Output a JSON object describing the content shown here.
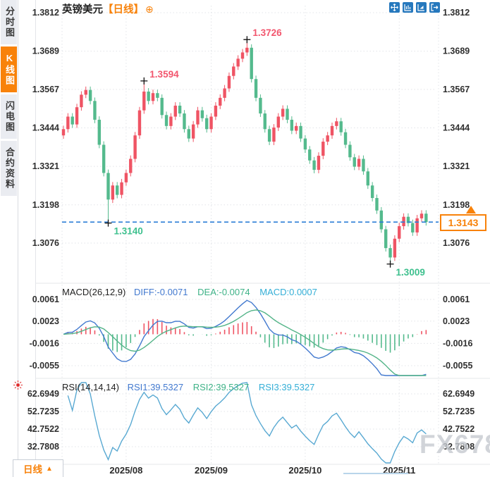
{
  "sidebar": {
    "tabs": [
      {
        "label": "分时图",
        "active": false
      },
      {
        "label": "K线图",
        "active": true
      },
      {
        "label": "闪电图",
        "active": false
      },
      {
        "label": "合约资料",
        "active": false
      }
    ]
  },
  "header": {
    "symbol": "英镑美元",
    "period_tag": "【日线】",
    "add_icon": "⊕",
    "toolbar_icons": [
      "pan-crosshair-icon",
      "axis-range-icon",
      "chart-scroll-icon",
      "exit-fullscreen-icon"
    ]
  },
  "indicators": {
    "macd": {
      "label": "MACD(26,12,9)",
      "diff_label": "DIFF:-0.0071",
      "dea_label": "DEA:-0.0074",
      "macd_label": "MACD:0.0007"
    },
    "rsi": {
      "label": "RSI(14,14,14)",
      "rsi1_label": "RSI1:39.5327",
      "rsi2_label": "RSI2:39.5327",
      "rsi3_label": "RSI3:39.5327"
    }
  },
  "footer": {
    "period_label": "日线",
    "arrow": "▲"
  },
  "price_tag": {
    "value": "1.3143"
  },
  "watermark": "FX678",
  "colors": {
    "accent_orange": "#f8820a",
    "candle_up_red": "#ef5464",
    "candle_down_green": "#54ba8d",
    "diff_blue": "#4279cf",
    "dea_green": "#53b488",
    "macd_cyan": "#33aed6",
    "rsi_blue": "#59a9d2",
    "dashed_price_blue": "#2f7fd6",
    "annotation_red": "#f2566e",
    "annotation_green": "#3ec08e",
    "grid_gray": "#e2e4e8",
    "axis_text": "#2f2f2f"
  },
  "chart_data": {
    "type": "candlestick+macd+rsi",
    "title": "英镑美元 日线 (GBP/USD Daily)",
    "legend_position": "top-left-per-panel",
    "grid": true,
    "price_ticks": [
      "1.3812",
      "1.3689",
      "1.3567",
      "1.3444",
      "1.3321",
      "1.3198",
      "1.3076"
    ],
    "price_axis_range": [
      1.295,
      1.3836
    ],
    "open_first": 1.342,
    "default_wick": 0.0011,
    "closes": [
      1.344,
      1.348,
      1.3455,
      1.351,
      1.355,
      1.3565,
      1.353,
      1.347,
      1.339,
      1.33,
      1.3215,
      1.326,
      1.323,
      1.327,
      1.33,
      1.3345,
      1.342,
      1.35,
      1.356,
      1.353,
      1.3555,
      1.354,
      1.3485,
      1.345,
      1.348,
      1.3515,
      1.349,
      1.344,
      1.341,
      1.3455,
      1.35,
      1.3475,
      1.344,
      1.348,
      1.3515,
      1.354,
      1.357,
      1.361,
      1.364,
      1.3665,
      1.3685,
      1.37,
      1.36,
      1.354,
      1.349,
      1.344,
      1.34,
      1.3445,
      1.348,
      1.3505,
      1.347,
      1.3435,
      1.345,
      1.341,
      1.3375,
      1.334,
      1.331,
      1.3355,
      1.34,
      1.342,
      1.345,
      1.3465,
      1.343,
      1.339,
      1.335,
      1.332,
      1.3345,
      1.3305,
      1.326,
      1.322,
      1.318,
      1.312,
      1.306,
      1.303,
      1.309,
      1.313,
      1.316,
      1.314,
      1.311,
      1.3155,
      1.317,
      1.3143
    ],
    "special_wicks": {
      "10": {
        "low": 1.314
      },
      "18": {
        "high": 1.3594
      },
      "41": {
        "high": 1.3726
      },
      "73": {
        "low": 1.3009
      }
    },
    "annotations": [
      {
        "text": "1.3594",
        "index": 18,
        "value": 1.3594,
        "side": "high",
        "color": "#f2566e"
      },
      {
        "text": "1.3726",
        "index": 41,
        "value": 1.3726,
        "side": "high",
        "color": "#f2566e"
      },
      {
        "text": "1.3140",
        "index": 10,
        "value": 1.314,
        "side": "low",
        "color": "#3ec08e"
      },
      {
        "text": "1.3009",
        "index": 73,
        "value": 1.3009,
        "side": "low",
        "color": "#3ec08e"
      }
    ],
    "current_price": 1.3143,
    "month_ticks": [
      {
        "label": "2025/08",
        "index": 14
      },
      {
        "label": "2025/09",
        "index": 33
      },
      {
        "label": "2025/10",
        "index": 54
      },
      {
        "label": "2025/11",
        "index": 75
      }
    ],
    "macd": {
      "params": [
        26,
        12,
        9
      ],
      "ticks": [
        "0.0061",
        "0.0023",
        "-0.0016",
        "-0.0055"
      ],
      "diff": -0.0071,
      "dea": -0.0074,
      "macd": 0.0007
    },
    "rsi": {
      "params": [
        14,
        14,
        14
      ],
      "ticks": [
        "62.6949",
        "52.7235",
        "42.7522",
        "32.7808"
      ],
      "rsi1": 39.5327,
      "rsi2": 39.5327,
      "rsi3": 39.5327
    }
  }
}
